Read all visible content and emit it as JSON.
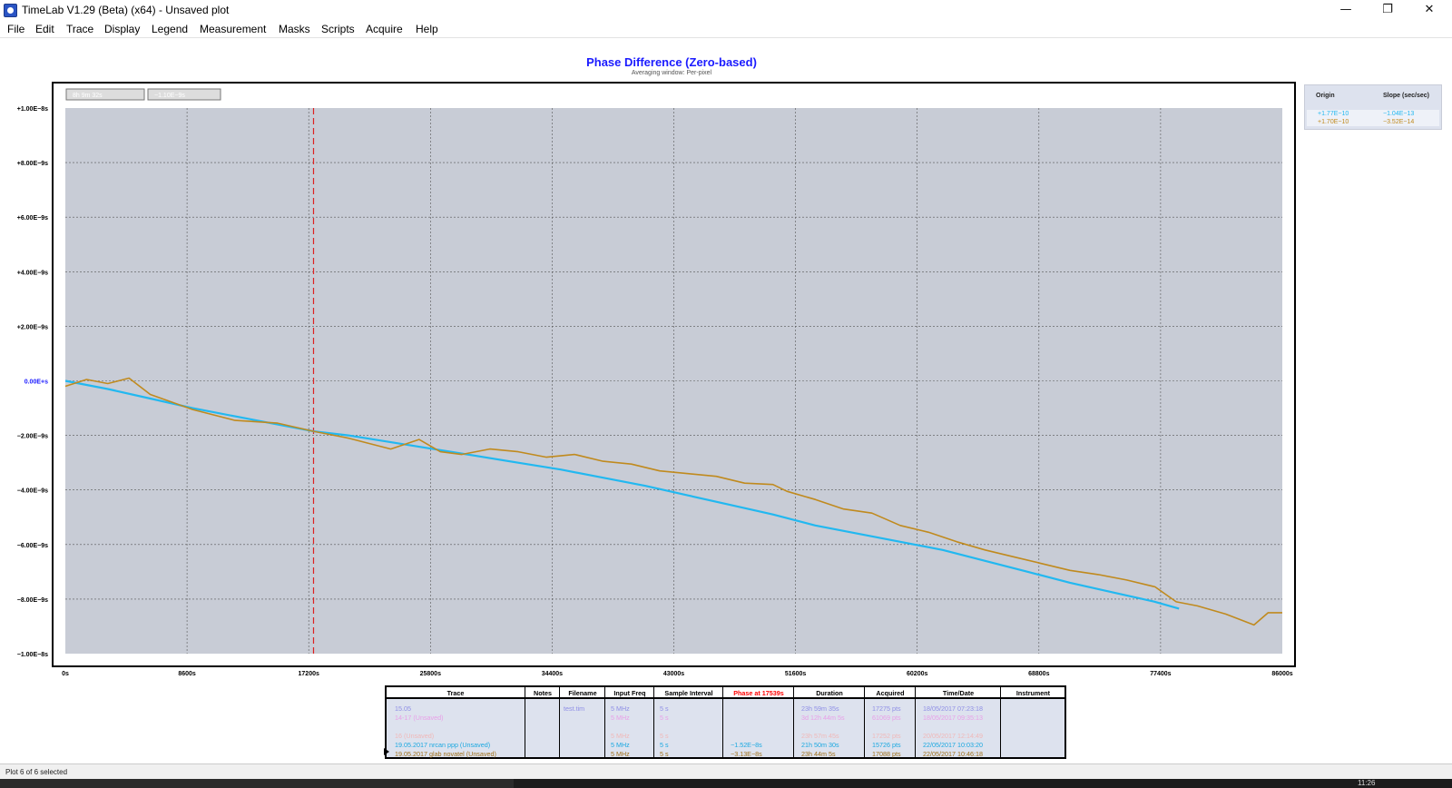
{
  "window": {
    "title": "TimeLab V1.29 (Beta) (x64) - Unsaved plot",
    "controls": {
      "minimize": "—",
      "maximize": "❐",
      "close": "✕"
    }
  },
  "menu": [
    "File",
    "Edit",
    "Trace",
    "Display",
    "Legend",
    "Measurement",
    "Masks",
    "Scripts",
    "Acquire",
    "Help"
  ],
  "chart": {
    "title": "Phase Difference (Zero-based)",
    "subtitle": "Averaging window: Per-pixel",
    "readout_boxes": [
      "8h 9m 32s",
      "−1.10E−9s"
    ]
  },
  "chart_data": {
    "type": "line",
    "x_tick_labels": [
      "0s",
      "8600s",
      "17200s",
      "25800s",
      "34400s",
      "43000s",
      "51600s",
      "60200s",
      "68800s",
      "77400s",
      "86000s"
    ],
    "y_tick_labels": [
      "+1.00E−8s",
      "+8.00E−9s",
      "+6.00E−9s",
      "+4.00E−9s",
      "+2.00E−9s",
      "0.00E+s",
      "−2.00E−9s",
      "−4.00E−9s",
      "−6.00E−9s",
      "−8.00E−9s",
      "−1.00E−8s"
    ],
    "xlim": [
      0,
      86000
    ],
    "ylim": [
      -1e-08,
      1e-08
    ],
    "grid": true,
    "marker_x": 17539,
    "series": [
      {
        "name": "19.05.2017 nrcan ppp (Unsaved)",
        "color": "#22b8f0",
        "x": [
          0,
          3000,
          6000,
          9000,
          12000,
          15000,
          17539,
          20000,
          23000,
          26000,
          29000,
          32000,
          35000,
          38000,
          41000,
          44000,
          47000,
          50000,
          53000,
          56000,
          59000,
          62000,
          65000,
          68000,
          71000,
          74000,
          77000,
          78700
        ],
        "y": [
          0.0,
          -3e-10,
          -6.5e-10,
          -1e-09,
          -1.3e-09,
          -1.6e-09,
          -1.85e-09,
          -2e-09,
          -2.25e-09,
          -2.5e-09,
          -2.75e-09,
          -3e-09,
          -3.25e-09,
          -3.55e-09,
          -3.85e-09,
          -4.2e-09,
          -4.55e-09,
          -4.9e-09,
          -5.3e-09,
          -5.6e-09,
          -5.9e-09,
          -6.2e-09,
          -6.6e-09,
          -7e-09,
          -7.4e-09,
          -7.75e-09,
          -8.1e-09,
          -8.35e-09
        ]
      },
      {
        "name": "19.05.2017 glab novatel (Unsaved)",
        "color": "#c08a1e",
        "x": [
          0,
          1500,
          3000,
          4500,
          6000,
          9000,
          12000,
          15000,
          17539,
          20000,
          23000,
          25000,
          26500,
          28000,
          30000,
          32000,
          34000,
          36000,
          38000,
          40000,
          42000,
          44000,
          46000,
          48000,
          50000,
          51000,
          53000,
          55000,
          57000,
          59000,
          61000,
          63000,
          65000,
          67000,
          69000,
          71000,
          73000,
          75000,
          77000,
          78500,
          80000,
          82000,
          84000,
          85000,
          86000
        ],
        "y": [
          -2e-10,
          5e-11,
          -1e-10,
          1e-10,
          -5e-10,
          -1.05e-09,
          -1.45e-09,
          -1.55e-09,
          -1.85e-09,
          -2.1e-09,
          -2.5e-09,
          -2.15e-09,
          -2.6e-09,
          -2.7e-09,
          -2.5e-09,
          -2.6e-09,
          -2.8e-09,
          -2.7e-09,
          -2.95e-09,
          -3.05e-09,
          -3.3e-09,
          -3.4e-09,
          -3.5e-09,
          -3.75e-09,
          -3.8e-09,
          -4.05e-09,
          -4.35e-09,
          -4.7e-09,
          -4.85e-09,
          -5.3e-09,
          -5.55e-09,
          -5.9e-09,
          -6.2e-09,
          -6.45e-09,
          -6.7e-09,
          -6.95e-09,
          -7.1e-09,
          -7.3e-09,
          -7.55e-09,
          -8.1e-09,
          -8.25e-09,
          -8.55e-09,
          -8.95e-09,
          -8.5e-09,
          -8.5e-09
        ]
      }
    ]
  },
  "slope_table": {
    "headers": [
      "Origin",
      "Slope (sec/sec)"
    ],
    "rows": [
      {
        "origin": "+1.77E−10",
        "slope": "−1.04E−13",
        "color": "#22b8f0"
      },
      {
        "origin": "+1.70E−10",
        "slope": "−3.52E−14",
        "color": "#c08a1e"
      }
    ]
  },
  "trace_table": {
    "headers": [
      "Trace",
      "Notes",
      "Filename",
      "Input Freq",
      "Sample Interval",
      "Phase at 17539s",
      "Duration",
      "Acquired",
      "Time/Date",
      "Instrument"
    ],
    "phase_header_color": "#ff0000",
    "rows": [
      {
        "trace": "15.05",
        "notes": "",
        "filename": "test.tim",
        "freq": "5 MHz",
        "interval": "5 s",
        "phase": "",
        "duration": "23h 59m 35s",
        "acquired": "17275 pts",
        "date": "18/05/2017 07:23:18",
        "color": "#8f8fe6"
      },
      {
        "trace": "14-17 (Unsaved)",
        "notes": "",
        "filename": "",
        "freq": "5 MHz",
        "interval": "5 s",
        "phase": "",
        "duration": "3d 12h 44m 5s",
        "acquired": "61069 pts",
        "date": "18/05/2017 09:35:13",
        "color": "#e8a0e8"
      },
      {
        "trace": "",
        "notes": "",
        "filename": "",
        "freq": "",
        "interval": "",
        "phase": "",
        "duration": "",
        "acquired": "",
        "date": "",
        "color": "#e8a0e8"
      },
      {
        "trace": "16 (Unsaved)",
        "notes": "",
        "filename": "",
        "freq": "5 MHz",
        "interval": "5 s",
        "phase": "",
        "duration": "23h 57m 45s",
        "acquired": "17252 pts",
        "date": "20/05/2017 12:14:49",
        "color": "#f0b8b8"
      },
      {
        "trace": "19.05.2017 nrcan ppp (Unsaved)",
        "notes": "",
        "filename": "",
        "freq": "5 MHz",
        "interval": "5 s",
        "phase": "−1.52E−8s",
        "duration": "21h 50m 30s",
        "acquired": "15726 pts",
        "date": "22/05/2017 10:03:20",
        "color": "#1aa8e0"
      },
      {
        "trace": "19.05.2017 glab novatel (Unsaved)",
        "notes": "",
        "filename": "",
        "freq": "5 MHz",
        "interval": "5 s",
        "phase": "−3.13E−8s",
        "duration": "23h 44m 5s",
        "acquired": "17088 pts",
        "date": "22/05/2017 10:46:18",
        "color": "#a0701a"
      }
    ]
  },
  "status": {
    "text": "Plot 6 of 6 selected",
    "clock": "11:26"
  }
}
